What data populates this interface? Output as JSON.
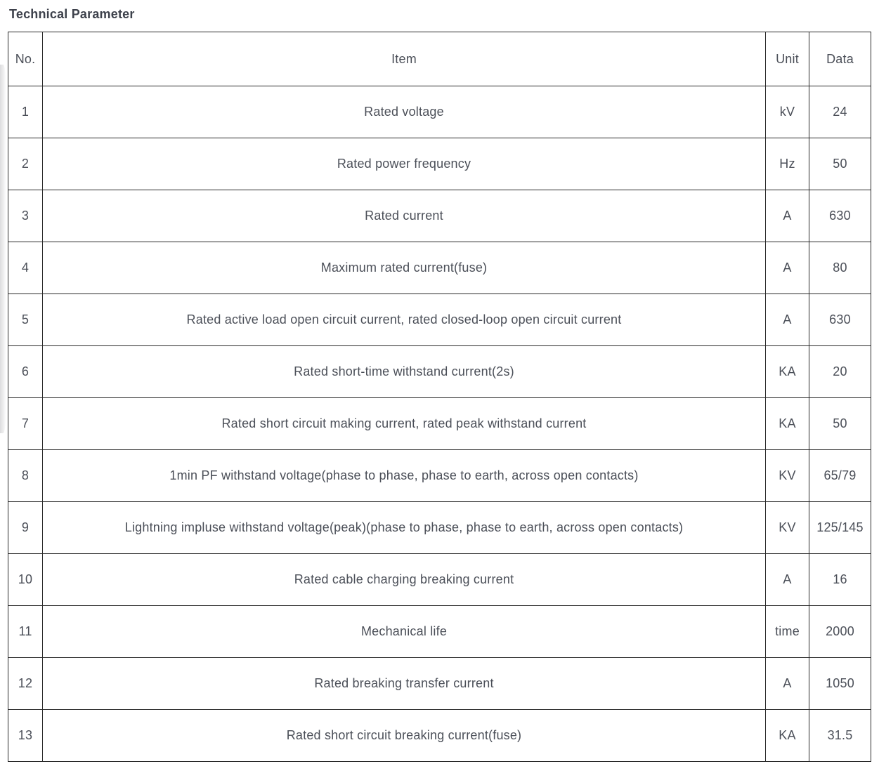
{
  "page_title": "Technical Parameter",
  "colors": {
    "text": "#4b4f58",
    "title": "#3d414b",
    "border": "#2a2a2a",
    "background": "#ffffff"
  },
  "table": {
    "headers": {
      "no": "No.",
      "item": "Item",
      "unit": "Unit",
      "data": "Data"
    },
    "rows": [
      {
        "no": "1",
        "item": "Rated voltage",
        "unit": "kV",
        "data": "24"
      },
      {
        "no": "2",
        "item": "Rated power frequency",
        "unit": "Hz",
        "data": "50"
      },
      {
        "no": "3",
        "item": "Rated current",
        "unit": "A",
        "data": "630"
      },
      {
        "no": "4",
        "item": "Maximum rated current(fuse)",
        "unit": "A",
        "data": "80"
      },
      {
        "no": "5",
        "item": "Rated active load open circuit current, rated closed-loop open circuit current",
        "unit": "A",
        "data": "630"
      },
      {
        "no": "6",
        "item": "Rated short-time withstand current(2s)",
        "unit": "KA",
        "data": "20"
      },
      {
        "no": "7",
        "item": "Rated short circuit making current, rated peak withstand current",
        "unit": "KA",
        "data": "50"
      },
      {
        "no": "8",
        "item": "1min PF withstand voltage(phase to phase, phase to earth, across open contacts)",
        "unit": "KV",
        "data": "65/79"
      },
      {
        "no": "9",
        "item": "Lightning impluse withstand voltage(peak)(phase to phase, phase to earth, across open contacts)",
        "unit": "KV",
        "data": "125/145"
      },
      {
        "no": "10",
        "item": "Rated cable charging breaking current",
        "unit": "A",
        "data": "16"
      },
      {
        "no": "11",
        "item": "Mechanical life",
        "unit": "time",
        "data": "2000"
      },
      {
        "no": "12",
        "item": "Rated breaking transfer current",
        "unit": "A",
        "data": "1050"
      },
      {
        "no": "13",
        "item": "Rated short circuit breaking current(fuse)",
        "unit": "KA",
        "data": "31.5"
      }
    ]
  }
}
